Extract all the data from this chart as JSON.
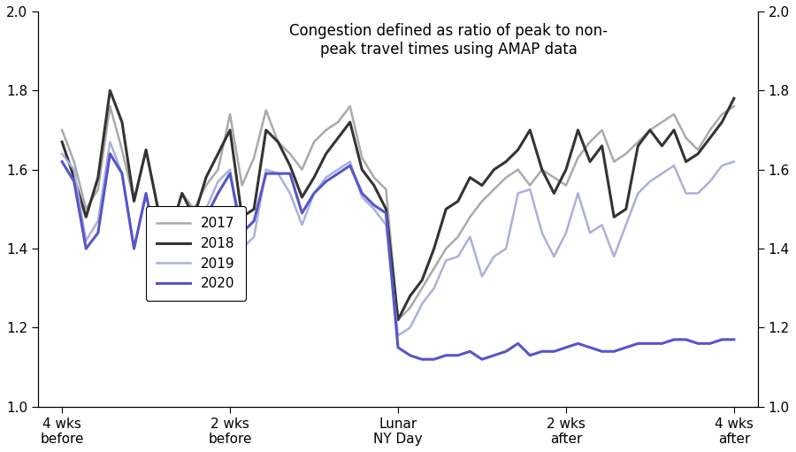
{
  "title": "Congestion defined as ratio of peak to non-\npeak travel times using AMAP data",
  "ylim": [
    1.0,
    2.0
  ],
  "yticks": [
    1.0,
    1.2,
    1.4,
    1.6,
    1.8,
    2.0
  ],
  "xtick_positions": [
    -28,
    -14,
    0,
    14,
    28
  ],
  "xtick_labels": [
    "4 wks\nbefore",
    "2 wks\nbefore",
    "Lunar\nNY Day",
    "2 wks\nafter",
    "4 wks\nafter"
  ],
  "legend_labels": [
    "2017",
    "2018",
    "2019",
    "2020"
  ],
  "colors": {
    "2017": "#aaaaaa",
    "2018": "#333333",
    "2019": "#aab0dd",
    "2020": "#5555cc"
  },
  "linewidths": {
    "2017": 1.8,
    "2018": 2.2,
    "2019": 1.8,
    "2020": 2.2
  },
  "x": [
    -28,
    -27,
    -26,
    -25,
    -24,
    -23,
    -22,
    -21,
    -20,
    -19,
    -18,
    -17,
    -16,
    -15,
    -14,
    -13,
    -12,
    -11,
    -10,
    -9,
    -8,
    -7,
    -6,
    -5,
    -4,
    -3,
    -2,
    -1,
    0,
    1,
    2,
    3,
    4,
    5,
    6,
    7,
    8,
    9,
    10,
    11,
    12,
    13,
    14,
    15,
    16,
    17,
    18,
    19,
    20,
    21,
    22,
    23,
    24,
    25,
    26,
    27,
    28
  ],
  "y2017": [
    1.7,
    1.62,
    1.5,
    1.55,
    1.76,
    1.65,
    1.52,
    1.65,
    1.5,
    1.44,
    1.54,
    1.5,
    1.56,
    1.6,
    1.74,
    1.56,
    1.63,
    1.75,
    1.67,
    1.64,
    1.6,
    1.67,
    1.7,
    1.72,
    1.76,
    1.63,
    1.58,
    1.55,
    1.22,
    1.25,
    1.3,
    1.35,
    1.4,
    1.43,
    1.48,
    1.52,
    1.55,
    1.58,
    1.6,
    1.56,
    1.6,
    1.58,
    1.56,
    1.63,
    1.67,
    1.7,
    1.62,
    1.64,
    1.67,
    1.7,
    1.72,
    1.74,
    1.68,
    1.65,
    1.7,
    1.74,
    1.76
  ],
  "y2018": [
    1.67,
    1.58,
    1.48,
    1.58,
    1.8,
    1.72,
    1.52,
    1.65,
    1.5,
    1.44,
    1.54,
    1.48,
    1.58,
    1.64,
    1.7,
    1.48,
    1.5,
    1.7,
    1.67,
    1.61,
    1.53,
    1.58,
    1.64,
    1.68,
    1.72,
    1.6,
    1.56,
    1.5,
    1.22,
    1.28,
    1.32,
    1.4,
    1.5,
    1.52,
    1.58,
    1.56,
    1.6,
    1.62,
    1.65,
    1.7,
    1.6,
    1.54,
    1.6,
    1.7,
    1.62,
    1.66,
    1.48,
    1.5,
    1.66,
    1.7,
    1.66,
    1.7,
    1.62,
    1.64,
    1.68,
    1.72,
    1.78
  ],
  "y2019": [
    1.64,
    1.6,
    1.42,
    1.47,
    1.67,
    1.59,
    1.4,
    1.54,
    1.4,
    1.38,
    1.46,
    1.4,
    1.5,
    1.57,
    1.6,
    1.4,
    1.43,
    1.6,
    1.59,
    1.54,
    1.46,
    1.54,
    1.58,
    1.6,
    1.62,
    1.53,
    1.5,
    1.46,
    1.18,
    1.2,
    1.26,
    1.3,
    1.37,
    1.38,
    1.43,
    1.33,
    1.38,
    1.4,
    1.54,
    1.55,
    1.44,
    1.38,
    1.44,
    1.54,
    1.44,
    1.46,
    1.38,
    1.46,
    1.54,
    1.57,
    1.59,
    1.61,
    1.54,
    1.54,
    1.57,
    1.61,
    1.62
  ],
  "y2020": [
    1.62,
    1.57,
    1.4,
    1.44,
    1.64,
    1.59,
    1.4,
    1.54,
    1.38,
    1.36,
    1.4,
    1.38,
    1.48,
    1.54,
    1.59,
    1.44,
    1.47,
    1.59,
    1.59,
    1.59,
    1.49,
    1.54,
    1.57,
    1.59,
    1.61,
    1.54,
    1.51,
    1.49,
    1.15,
    1.13,
    1.12,
    1.12,
    1.13,
    1.13,
    1.14,
    1.12,
    1.13,
    1.14,
    1.16,
    1.13,
    1.14,
    1.14,
    1.15,
    1.16,
    1.15,
    1.14,
    1.14,
    1.15,
    1.16,
    1.16,
    1.16,
    1.17,
    1.17,
    1.16,
    1.16,
    1.17,
    1.17
  ]
}
